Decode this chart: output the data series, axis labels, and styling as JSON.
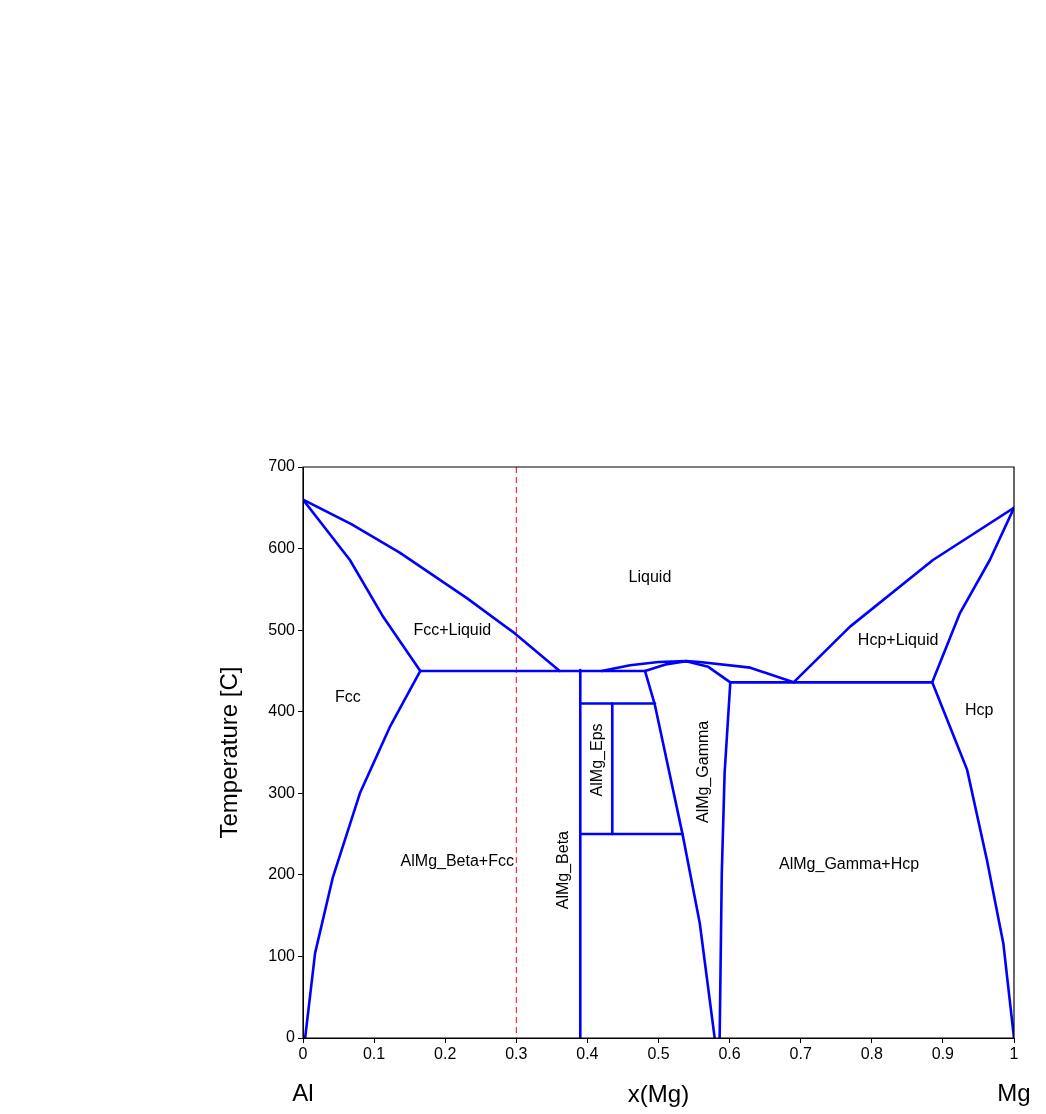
{
  "chart_data": {
    "type": "line",
    "xlabel": "x(Mg)",
    "ylabel": "Temperature [C]",
    "xlim": [
      0,
      1
    ],
    "ylim": [
      0,
      700
    ],
    "xticks": [
      0,
      0.1,
      0.2,
      0.3,
      0.4,
      0.5,
      0.6,
      0.7,
      0.8,
      0.9,
      1
    ],
    "yticks": [
      0,
      100,
      200,
      300,
      400,
      500,
      600,
      700
    ],
    "grid": false,
    "legend": false,
    "marker": "none",
    "line_style": "solid",
    "series": [
      {
        "color": "#0000ff",
        "x": [
          0,
          0.068,
          0.136,
          0.231,
          0.298,
          0.361
        ],
        "values": [
          660,
          630,
          595,
          539,
          496,
          450
        ]
      },
      {
        "color": "#0000ff",
        "x": [
          0,
          0.066,
          0.113,
          0.165,
          0.122,
          0.08,
          0.042,
          0.017,
          0.003
        ],
        "values": [
          660,
          586,
          516,
          450,
          381,
          300,
          197,
          104,
          0
        ]
      },
      {
        "color": "#0000ff",
        "x": [
          0.165,
          0.481,
          0.51,
          0.539,
          0.57,
          0.601,
          0.885
        ],
        "values": [
          450,
          450,
          458,
          462,
          455,
          436,
          436
        ]
      },
      {
        "color": "#0000ff",
        "x": [
          0.39,
          0.39
        ],
        "values": [
          451,
          0
        ]
      },
      {
        "color": "#0000ff",
        "x": [
          0.42,
          0.46,
          0.5,
          0.539,
          0.558,
          0.629,
          0.69
        ],
        "values": [
          450,
          457,
          461,
          462,
          461,
          454,
          436
        ]
      },
      {
        "color": "#0000ff",
        "x": [
          0.481,
          0.495,
          0.534,
          0.558,
          0.579
        ],
        "values": [
          450,
          408,
          249,
          141,
          0
        ]
      },
      {
        "color": "#0000ff",
        "x": [
          0.601,
          0.593,
          0.589,
          0.586
        ],
        "values": [
          436,
          325,
          202,
          0
        ]
      },
      {
        "color": "#0000ff",
        "x": [
          0.39,
          0.495
        ],
        "values": [
          410,
          410
        ]
      },
      {
        "color": "#0000ff",
        "x": [
          0.435,
          0.435
        ],
        "values": [
          410,
          250
        ]
      },
      {
        "color": "#0000ff",
        "x": [
          0.39,
          0.534
        ],
        "values": [
          250,
          250
        ]
      },
      {
        "color": "#0000ff",
        "x": [
          0.69,
          0.769,
          0.886,
          1
        ],
        "values": [
          436,
          504,
          586,
          650
        ]
      },
      {
        "color": "#0000ff",
        "x": [
          1,
          0.966,
          0.924,
          0.885,
          0.934,
          0.962,
          0.985,
          1
        ],
        "values": [
          650,
          586,
          521,
          436,
          329,
          218,
          116,
          0
        ]
      }
    ],
    "ref_lines": [
      {
        "axis": "x",
        "value": 0.3,
        "color": "#ff0000",
        "line_style": "dashed"
      }
    ],
    "annotations": [
      "Liquid",
      "Fcc+Liquid",
      "Fcc",
      "AlMg_Beta+Fcc",
      "AlMg_Beta",
      "AlMg_Eps",
      "AlMg_Gamma",
      "AlMg_Gamma+Hcp",
      "Hcp+Liquid",
      "Hcp",
      "Al",
      "Mg"
    ]
  }
}
